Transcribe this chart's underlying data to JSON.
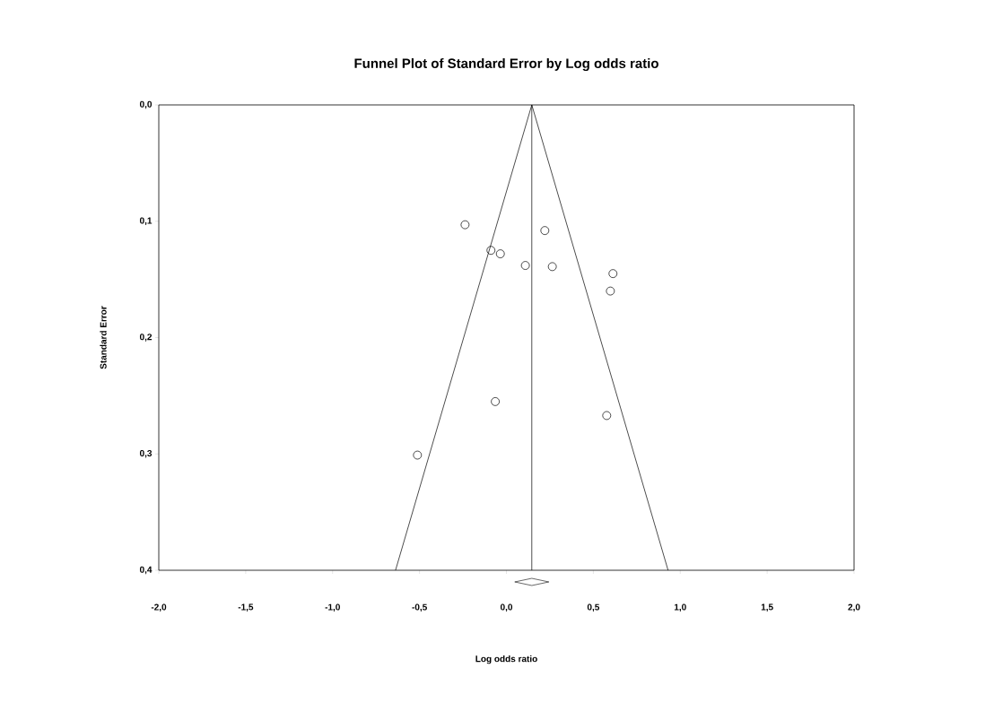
{
  "chart_data": {
    "type": "scatter",
    "title": "Funnel Plot of Standard Error by Log odds ratio",
    "xlabel": "Log odds ratio",
    "ylabel": "Standard Error",
    "xlim": [
      -2,
      2
    ],
    "ylim": [
      0.4,
      0
    ],
    "xticks": [
      {
        "value": -2,
        "label": "-2,0"
      },
      {
        "value": -1.5,
        "label": "-1,5"
      },
      {
        "value": -1,
        "label": "-1,0"
      },
      {
        "value": -0.5,
        "label": "-0,5"
      },
      {
        "value": 0,
        "label": "0,0"
      },
      {
        "value": 0.5,
        "label": "0,5"
      },
      {
        "value": 1,
        "label": "1,0"
      },
      {
        "value": 1.5,
        "label": "1,5"
      },
      {
        "value": 2,
        "label": "2,0"
      }
    ],
    "yticks": [
      {
        "value": 0,
        "label": "0,0"
      },
      {
        "value": 0.1,
        "label": "0,1"
      },
      {
        "value": 0.2,
        "label": "0,2"
      },
      {
        "value": 0.3,
        "label": "0,3"
      },
      {
        "value": 0.4,
        "label": "0,4"
      }
    ],
    "series": [
      {
        "color": "#000000",
        "marker": "circle",
        "x": [
          -0.238,
          -0.089,
          -0.035,
          0.221,
          0.109,
          0.264,
          0.613,
          0.598,
          -0.064,
          0.577,
          -0.512
        ],
        "values": [
          0.103,
          0.125,
          0.128,
          0.108,
          0.138,
          0.139,
          0.145,
          0.16,
          0.255,
          0.267,
          0.301
        ]
      },
      {
        "type": "line",
        "color": "#000000",
        "marker": "none",
        "x": [
          -0.638,
          0.146,
          0.93
        ],
        "values": [
          0.4,
          0,
          0.4
        ]
      }
    ],
    "ref_lines": [
      {
        "axis": "x",
        "value": 0.146,
        "color": "#000000"
      }
    ]
  }
}
